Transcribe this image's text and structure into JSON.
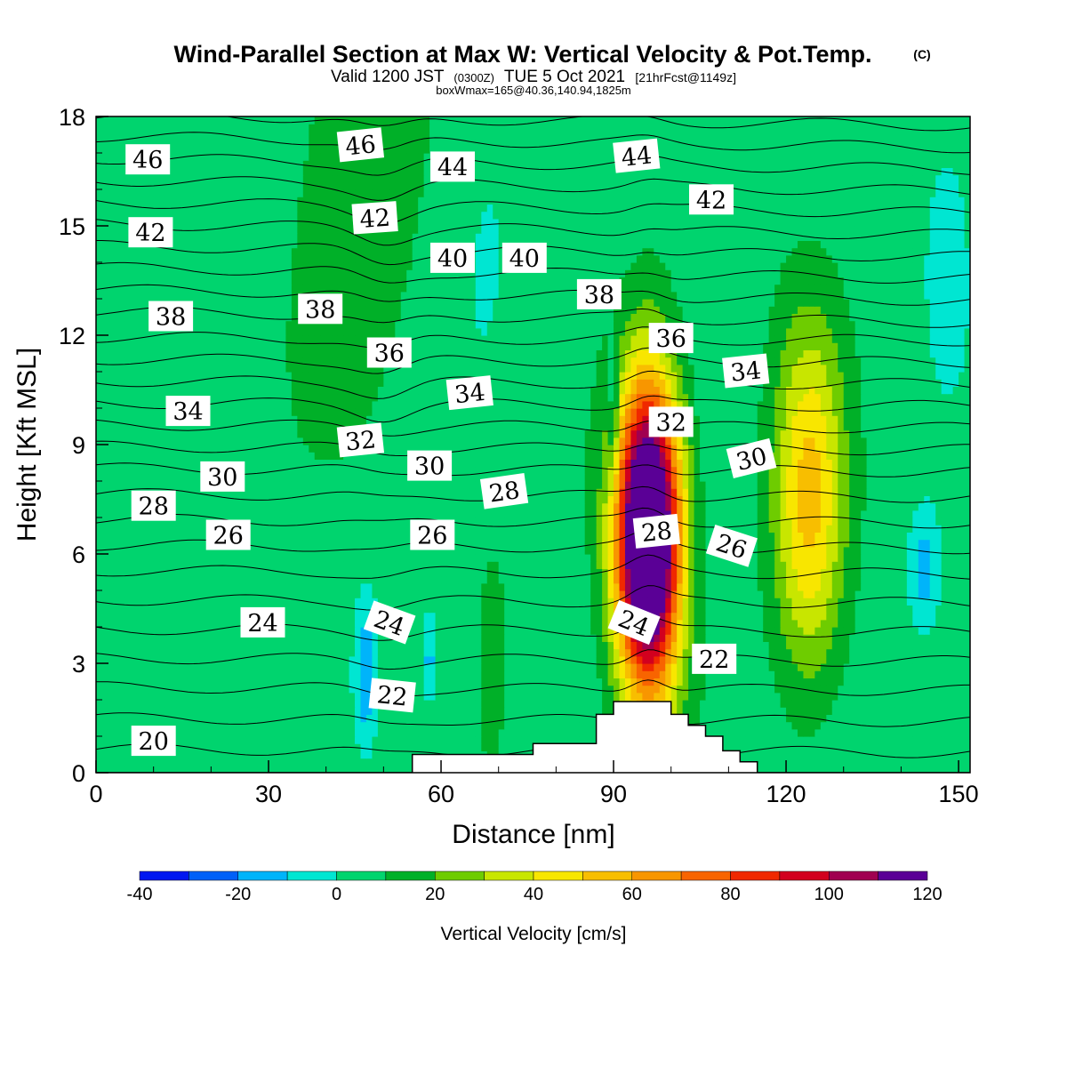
{
  "chart_data": {
    "type": "heatmap",
    "title": "Wind-Parallel Section at Max W: Vertical Velocity & Pot.Temp.",
    "copyright": "(C)",
    "subtitle_prefix": "Valid 1200 JST",
    "subtitle_small_utc": "(0300Z)",
    "subtitle_date": "TUE 5 Oct 2021",
    "subtitle_forecast": "[21hrFcst@1149z]",
    "box_info": "boxWmax=165@40.36,140.94,1825m",
    "xlabel": "Distance [nm]",
    "ylabel": "Height [Kft MSL]",
    "xlim": [
      0,
      152
    ],
    "ylim": [
      0,
      18
    ],
    "x_ticks": [
      0,
      30,
      60,
      90,
      120,
      150
    ],
    "x_tick_labels": [
      "0",
      "30",
      "60",
      "90",
      "120",
      "150"
    ],
    "y_ticks": [
      0,
      3,
      6,
      9,
      12,
      15,
      18
    ],
    "y_tick_labels": [
      "0",
      "3",
      "6",
      "9",
      "12",
      "15",
      "18"
    ],
    "colorbar": {
      "label": "Vertical Velocity [cm/s]",
      "levels": [
        -40,
        -30,
        -20,
        -10,
        0,
        10,
        20,
        30,
        40,
        50,
        60,
        70,
        80,
        90,
        100,
        110,
        120
      ],
      "colors": [
        "#0018f0",
        "#0060f8",
        "#00b4fa",
        "#00e6d2",
        "#00d46e",
        "#00b028",
        "#6ecc00",
        "#c8e600",
        "#f8e600",
        "#f8be00",
        "#f89600",
        "#f86400",
        "#f02800",
        "#d2001e",
        "#a00050",
        "#5a0096"
      ],
      "tick_values": [
        -40,
        -20,
        0,
        20,
        40,
        60,
        80,
        100,
        120
      ],
      "tick_labels": [
        "-40",
        "-20",
        "0",
        "20",
        "40",
        "60",
        "80",
        "100",
        "120"
      ]
    },
    "terrain": [
      [
        0,
        0
      ],
      [
        55,
        0
      ],
      [
        55,
        0.5
      ],
      [
        76,
        0.5
      ],
      [
        76,
        0.8
      ],
      [
        87,
        0.8
      ],
      [
        87,
        1.6
      ],
      [
        90,
        1.6
      ],
      [
        90,
        1.95
      ],
      [
        100,
        1.95
      ],
      [
        100,
        1.6
      ],
      [
        103,
        1.6
      ],
      [
        103,
        1.3
      ],
      [
        106,
        1.3
      ],
      [
        106,
        1.0
      ],
      [
        109,
        1.0
      ],
      [
        109,
        0.6
      ],
      [
        112,
        0.6
      ],
      [
        112,
        0.3
      ],
      [
        115,
        0.3
      ],
      [
        115,
        0
      ],
      [
        152,
        0
      ]
    ],
    "vertical_velocity_features": [
      {
        "x": 96,
        "y": 6.5,
        "x_halfwidth": 5.5,
        "y_halfheight": 4.2,
        "peak": 165
      },
      {
        "x": 124,
        "y": 7.5,
        "x_halfwidth": 6,
        "y_halfheight": 4.8,
        "peak": 48
      },
      {
        "x": 45,
        "y": 15.5,
        "x_halfwidth": 10,
        "y_halfheight": 6,
        "peak": 15
      },
      {
        "x": 69,
        "y": 3,
        "x_halfwidth": 2.5,
        "y_halfheight": 3,
        "peak": 12
      },
      {
        "x": 47,
        "y": 2.8,
        "x_halfwidth": 2,
        "y_halfheight": 2,
        "peak": -25
      },
      {
        "x": 58,
        "y": 3.1,
        "x_halfwidth": 1.2,
        "y_halfheight": 1.2,
        "peak": -20
      },
      {
        "x": 90,
        "y": 9.8,
        "x_halfwidth": 1,
        "y_halfheight": 2,
        "peak": -20
      },
      {
        "x": 144,
        "y": 5.5,
        "x_halfwidth": 2.5,
        "y_halfheight": 1.5,
        "peak": -20
      },
      {
        "x": 148,
        "y": 15,
        "x_halfwidth": 5,
        "y_halfheight": 4,
        "peak": -8
      },
      {
        "x": 68,
        "y": 14,
        "x_halfwidth": 5,
        "y_halfheight": 4,
        "peak": -6
      }
    ],
    "theta_contours": {
      "levels": [
        20,
        21,
        22,
        23,
        24,
        25,
        26,
        27,
        28,
        29,
        30,
        31,
        32,
        33,
        34,
        35,
        36,
        37,
        38,
        39,
        40,
        41,
        42,
        43,
        44,
        45,
        46,
        47
      ],
      "base_height": [
        0.6,
        1.45,
        2.3,
        3.1,
        3.9,
        4.7,
        5.5,
        6.2,
        6.9,
        7.6,
        8.3,
        8.9,
        9.5,
        10.1,
        10.7,
        11.3,
        11.9,
        12.5,
        13.1,
        13.7,
        14.3,
        14.9,
        15.5,
        16.1,
        16.7,
        17.3,
        17.9,
        18.4
      ]
    },
    "contour_labels": [
      {
        "text": "46",
        "x": 9,
        "y": 16.8,
        "angle": 0
      },
      {
        "text": "42",
        "x": 9.5,
        "y": 14.8,
        "angle": 0
      },
      {
        "text": "38",
        "x": 13,
        "y": 12.5,
        "angle": 0
      },
      {
        "text": "34",
        "x": 16,
        "y": 9.9,
        "angle": 0
      },
      {
        "text": "30",
        "x": 22,
        "y": 8.1,
        "angle": 0
      },
      {
        "text": "28",
        "x": 10,
        "y": 7.3,
        "angle": 0
      },
      {
        "text": "26",
        "x": 23,
        "y": 6.5,
        "angle": 0
      },
      {
        "text": "24",
        "x": 29,
        "y": 4.1,
        "angle": 0
      },
      {
        "text": "20",
        "x": 10,
        "y": 0.85,
        "angle": 0
      },
      {
        "text": "46",
        "x": 46,
        "y": 17.2,
        "angle": -6
      },
      {
        "text": "42",
        "x": 48.5,
        "y": 15.2,
        "angle": -4
      },
      {
        "text": "38",
        "x": 39,
        "y": 12.7,
        "angle": 0
      },
      {
        "text": "36",
        "x": 51,
        "y": 11.5,
        "angle": 0
      },
      {
        "text": "32",
        "x": 46,
        "y": 9.1,
        "angle": -6
      },
      {
        "text": "24",
        "x": 51,
        "y": 4.1,
        "angle": 20
      },
      {
        "text": "22",
        "x": 51.5,
        "y": 2.1,
        "angle": 6
      },
      {
        "text": "44",
        "x": 62,
        "y": 16.6,
        "angle": 0
      },
      {
        "text": "40",
        "x": 62,
        "y": 14.1,
        "angle": 0
      },
      {
        "text": "34",
        "x": 65,
        "y": 10.4,
        "angle": -6
      },
      {
        "text": "30",
        "x": 58,
        "y": 8.4,
        "angle": 0
      },
      {
        "text": "26",
        "x": 58.5,
        "y": 6.5,
        "angle": 0
      },
      {
        "text": "28",
        "x": 71,
        "y": 7.7,
        "angle": -8
      },
      {
        "text": "40",
        "x": 74.5,
        "y": 14.1,
        "angle": 0
      },
      {
        "text": "38",
        "x": 87.5,
        "y": 13.1,
        "angle": 0
      },
      {
        "text": "44",
        "x": 94,
        "y": 16.9,
        "angle": -6
      },
      {
        "text": "36",
        "x": 100,
        "y": 11.9,
        "angle": 0
      },
      {
        "text": "32",
        "x": 100,
        "y": 9.6,
        "angle": 0
      },
      {
        "text": "28",
        "x": 97.5,
        "y": 6.6,
        "angle": -6
      },
      {
        "text": "24",
        "x": 93.5,
        "y": 4.1,
        "angle": 22
      },
      {
        "text": "42",
        "x": 107,
        "y": 15.7,
        "angle": 0
      },
      {
        "text": "34",
        "x": 113,
        "y": 11,
        "angle": -6
      },
      {
        "text": "30",
        "x": 114,
        "y": 8.6,
        "angle": -14
      },
      {
        "text": "26",
        "x": 110.5,
        "y": 6.2,
        "angle": 18
      },
      {
        "text": "22",
        "x": 107.5,
        "y": 3.1,
        "angle": 0
      }
    ]
  }
}
